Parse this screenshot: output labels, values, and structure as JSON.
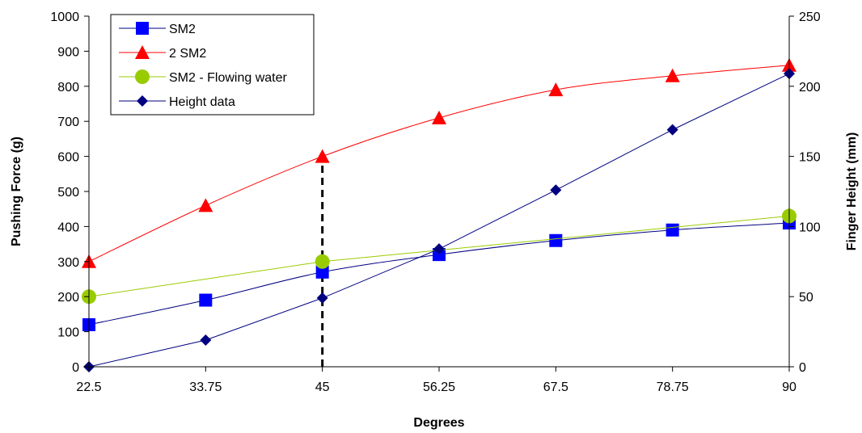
{
  "chart_data": {
    "type": "line",
    "x": [
      22.5,
      33.75,
      45,
      56.25,
      67.5,
      78.75,
      90
    ],
    "x_tick_labels": [
      "22.5",
      "33.75",
      "45",
      "56.25",
      "67.5",
      "78.75",
      "90"
    ],
    "xlabel": "Degrees",
    "ylabel": "Pushing Force (g)",
    "y2label": "Finger Height (mm)",
    "ylim": [
      0,
      1000
    ],
    "y2lim": [
      0,
      250
    ],
    "y_ticks": [
      "0",
      "100",
      "200",
      "300",
      "400",
      "500",
      "600",
      "700",
      "800",
      "900",
      "1000"
    ],
    "y2_ticks": [
      "0",
      "50",
      "100",
      "150",
      "200",
      "250"
    ],
    "grid": false,
    "legend_position": "top-left",
    "series": [
      {
        "name": "SM2",
        "axis": "left",
        "marker": "square",
        "color": "#0000FF",
        "line_color": "#000080",
        "values": [
          120,
          190,
          270,
          320,
          360,
          390,
          410
        ]
      },
      {
        "name": "2 SM2",
        "axis": "left",
        "marker": "triangle",
        "color": "#FF0000",
        "line_color": "#FF0000",
        "values": [
          300,
          460,
          600,
          710,
          790,
          830,
          860
        ]
      },
      {
        "name": "SM2 - Flowing water",
        "axis": "left",
        "marker": "circle",
        "color": "#99CC00",
        "line_color": "#99CC00",
        "values": [
          200,
          null,
          300,
          null,
          null,
          null,
          430
        ]
      },
      {
        "name": "Height data",
        "axis": "right",
        "marker": "diamond",
        "color": "#000080",
        "line_color": "#000080",
        "values": [
          0,
          19,
          49,
          84,
          126,
          169,
          209
        ]
      }
    ],
    "annotations": [
      {
        "type": "vertical-dashed-line",
        "x": 45,
        "y_from": 0,
        "y_to": 600,
        "color": "#000000"
      }
    ]
  }
}
